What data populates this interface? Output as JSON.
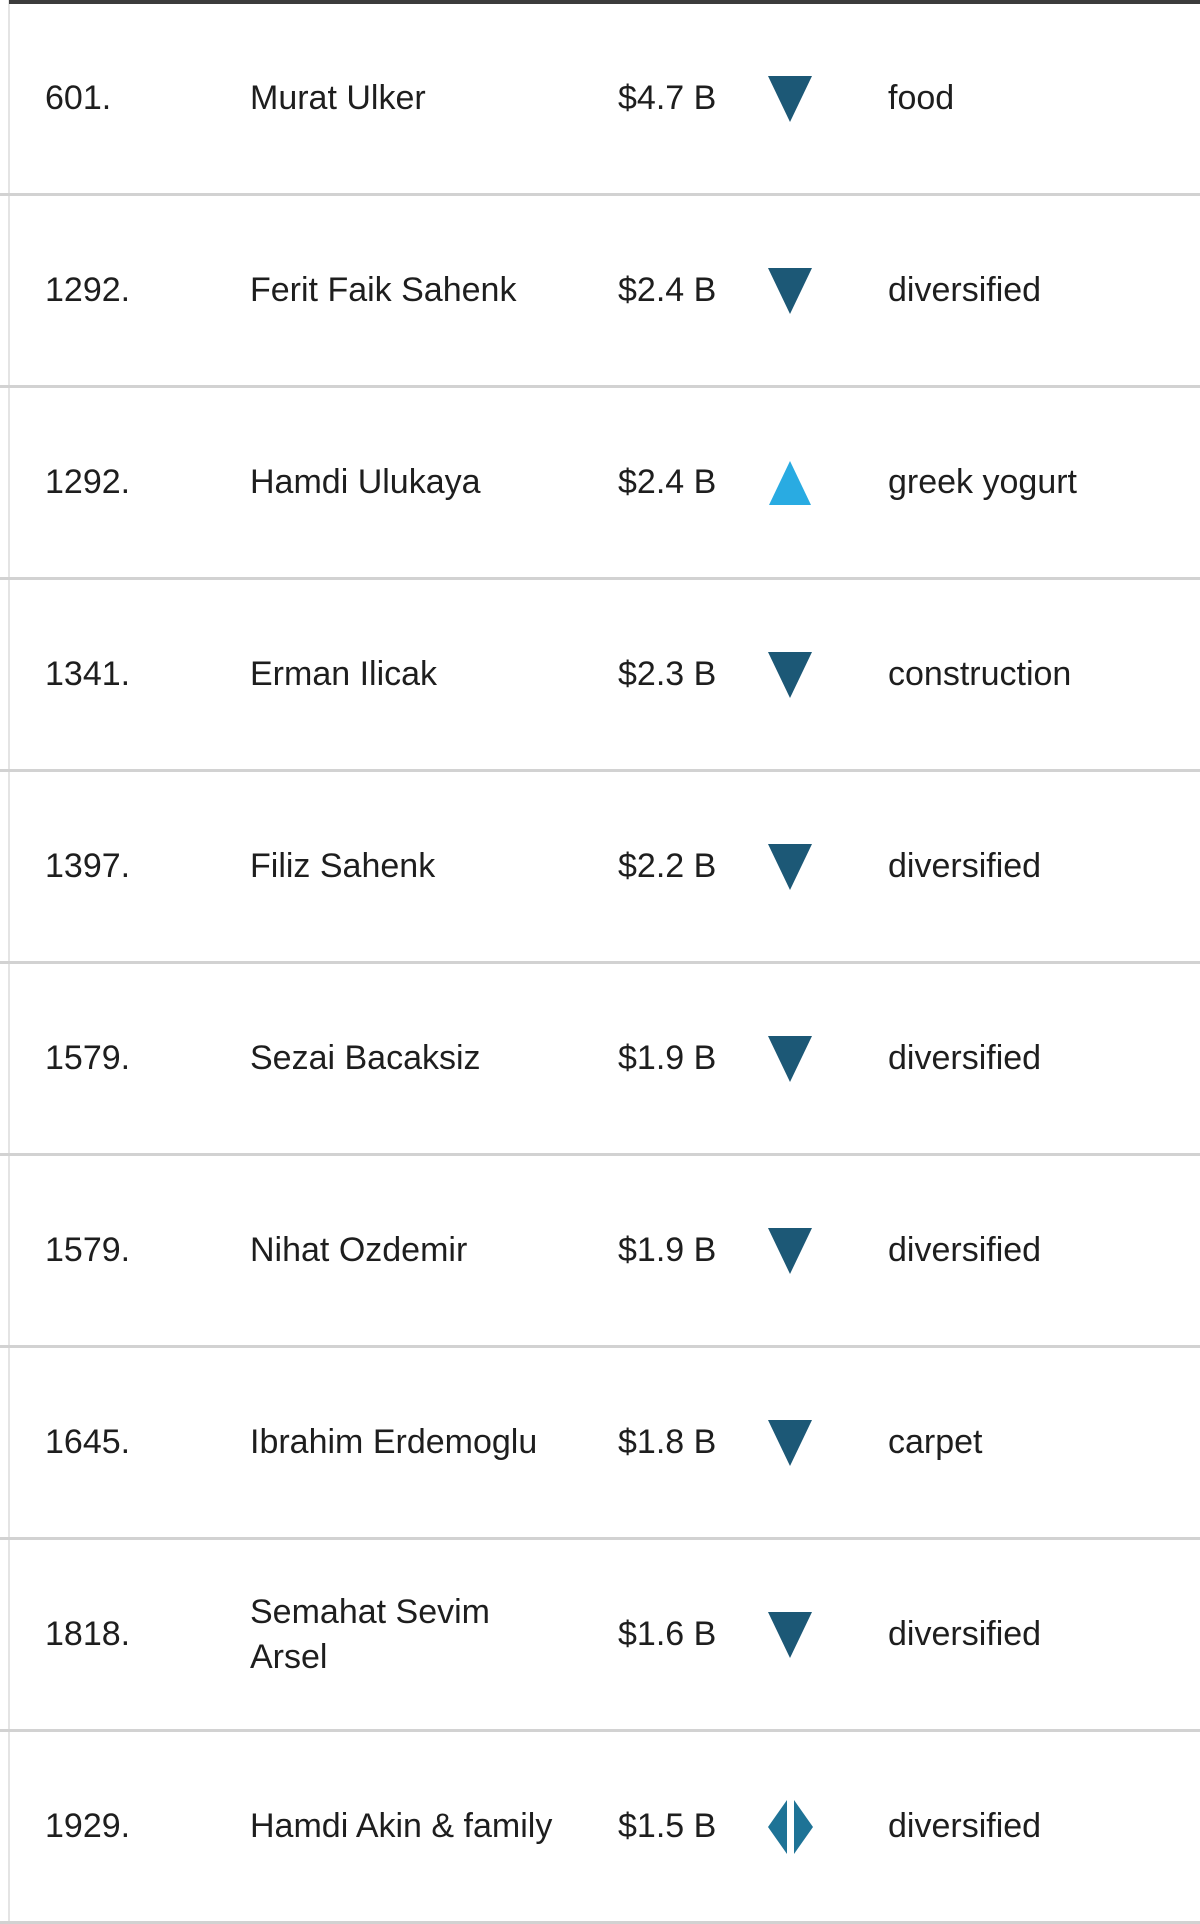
{
  "colors": {
    "text": "#1e1e1e",
    "down": "#1c5876",
    "up": "#29abe2",
    "same": "#1e7396",
    "separator": "#d2d2d2",
    "top_border": "#3c3c3c",
    "left_border": "#e4e4e4",
    "background": "#ffffff"
  },
  "icons": {
    "down": "down-triangle-icon",
    "up": "up-triangle-icon",
    "same": "unchanged-diamond-icon"
  },
  "table": {
    "rows": [
      {
        "rank": "601.",
        "name": "Murat Ulker",
        "net_worth": "$4.7 B",
        "change": "down",
        "industry": "food"
      },
      {
        "rank": "1292.",
        "name": "Ferit Faik Sahenk",
        "net_worth": "$2.4 B",
        "change": "down",
        "industry": "diversified"
      },
      {
        "rank": "1292.",
        "name": "Hamdi Ulukaya",
        "net_worth": "$2.4 B",
        "change": "up",
        "industry": "greek yogurt"
      },
      {
        "rank": "1341.",
        "name": "Erman Ilicak",
        "net_worth": "$2.3 B",
        "change": "down",
        "industry": "construction"
      },
      {
        "rank": "1397.",
        "name": "Filiz Sahenk",
        "net_worth": "$2.2 B",
        "change": "down",
        "industry": "diversified"
      },
      {
        "rank": "1579.",
        "name": "Sezai Bacaksiz",
        "net_worth": "$1.9 B",
        "change": "down",
        "industry": "diversified"
      },
      {
        "rank": "1579.",
        "name": "Nihat Ozdemir",
        "net_worth": "$1.9 B",
        "change": "down",
        "industry": "diversified"
      },
      {
        "rank": "1645.",
        "name": "Ibrahim Erdemoglu",
        "net_worth": "$1.8 B",
        "change": "down",
        "industry": "carpet"
      },
      {
        "rank": "1818.",
        "name": "Semahat Sevim Arsel",
        "net_worth": "$1.6 B",
        "change": "down",
        "industry": "diversified"
      },
      {
        "rank": "1929.",
        "name": "Hamdi Akin & family",
        "net_worth": "$1.5 B",
        "change": "same",
        "industry": "diversified"
      }
    ]
  }
}
